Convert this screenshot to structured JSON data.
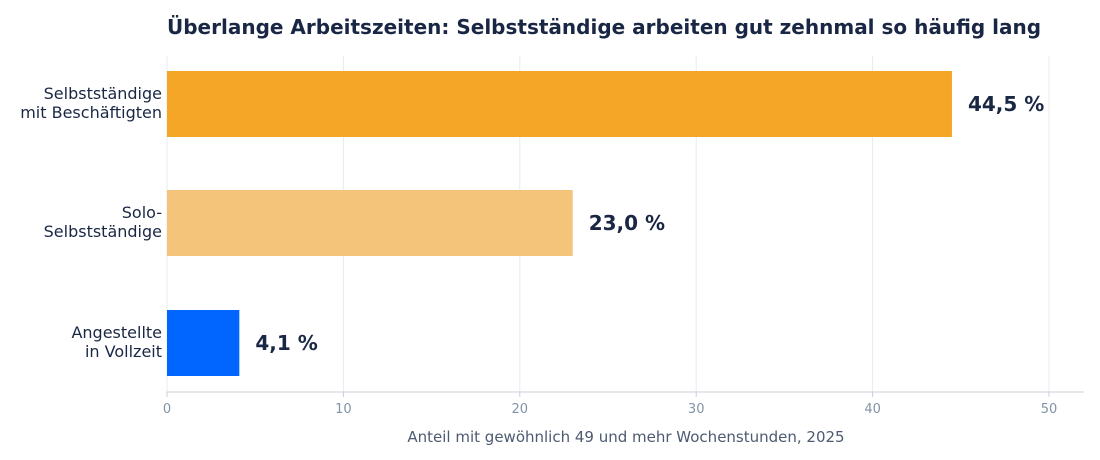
{
  "chart_data": {
    "type": "bar",
    "orientation": "horizontal",
    "title": "Überlange Arbeitszeiten: Selbstständige arbeiten gut zehnmal so häufig lang",
    "xlabel": "Anteil mit gewöhnlich 49 und mehr Wochenstunden, 2025",
    "ylabel": "",
    "xlim": [
      0,
      50
    ],
    "xticks": [
      0,
      10,
      20,
      30,
      40,
      50
    ],
    "tick_labels": [
      "0",
      "10",
      "20",
      "30",
      "40",
      "50"
    ],
    "grid": "vertical",
    "legend": "none",
    "categories": [
      [
        "Selbstständige",
        "mit Beschäftigten"
      ],
      [
        "Solo-",
        "Selbstständige"
      ],
      [
        "Angestellte",
        "in Vollzeit"
      ]
    ],
    "values": [
      44.5,
      23.0,
      4.1
    ],
    "value_labels": [
      "44,5 %",
      "23,0 %",
      "4,1 %"
    ],
    "colors": [
      "#f5a627",
      "#f3c47a",
      "#0066ff"
    ]
  }
}
